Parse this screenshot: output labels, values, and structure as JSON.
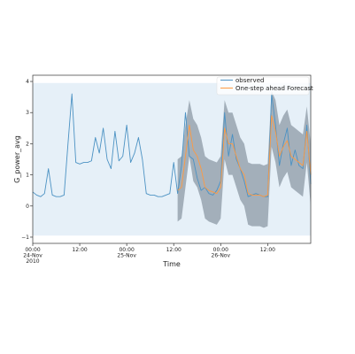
{
  "chart_data": {
    "type": "line",
    "title": "",
    "xlabel": "Time",
    "ylabel": "G_power_avg",
    "xlim": [
      "2010-11-24 00:00",
      "2010-11-26 23:00"
    ],
    "ylim": [
      -1.2,
      4.2
    ],
    "yticks": [
      -1,
      0,
      1,
      2,
      3,
      4
    ],
    "ytick_labels": [
      "−1",
      "0",
      "1",
      "2",
      "3",
      "4"
    ],
    "xticks": [
      {
        "x": "2010-11-24 00:00",
        "label": "00:00\n24-Nov\n2010"
      },
      {
        "x": "2010-11-24 12:00",
        "label": "12:00"
      },
      {
        "x": "2010-11-25 00:00",
        "label": "00:00\n25-Nov"
      },
      {
        "x": "2010-11-25 12:00",
        "label": "12:00"
      },
      {
        "x": "2010-11-26 00:00",
        "label": "00:00\n26-Nov"
      },
      {
        "x": "2010-11-26 12:00",
        "label": "12:00"
      }
    ],
    "grid": false,
    "legend_position": "top-right",
    "colors": {
      "observed": "#4c92c3",
      "forecast": "#ff9a40",
      "band": "#8c9aa6",
      "background": "#e6f0f8"
    },
    "series": [
      {
        "name": "observed",
        "x": [
          "2010-11-24 00:00",
          "2010-11-24 01:00",
          "2010-11-24 02:00",
          "2010-11-24 03:00",
          "2010-11-24 04:00",
          "2010-11-24 05:00",
          "2010-11-24 06:00",
          "2010-11-24 07:00",
          "2010-11-24 08:00",
          "2010-11-24 09:00",
          "2010-11-24 10:00",
          "2010-11-24 11:00",
          "2010-11-24 12:00",
          "2010-11-24 13:00",
          "2010-11-24 14:00",
          "2010-11-24 15:00",
          "2010-11-24 16:00",
          "2010-11-24 17:00",
          "2010-11-24 18:00",
          "2010-11-24 19:00",
          "2010-11-24 20:00",
          "2010-11-24 21:00",
          "2010-11-24 22:00",
          "2010-11-24 23:00",
          "2010-11-25 00:00",
          "2010-11-25 01:00",
          "2010-11-25 02:00",
          "2010-11-25 03:00",
          "2010-11-25 04:00",
          "2010-11-25 05:00",
          "2010-11-25 06:00",
          "2010-11-25 07:00",
          "2010-11-25 08:00",
          "2010-11-25 09:00",
          "2010-11-25 10:00",
          "2010-11-25 11:00",
          "2010-11-25 12:00",
          "2010-11-25 13:00",
          "2010-11-25 14:00",
          "2010-11-25 15:00",
          "2010-11-25 16:00",
          "2010-11-25 17:00",
          "2010-11-25 18:00",
          "2010-11-25 19:00",
          "2010-11-25 20:00",
          "2010-11-25 21:00",
          "2010-11-25 22:00",
          "2010-11-25 23:00",
          "2010-11-26 00:00",
          "2010-11-26 01:00",
          "2010-11-26 02:00",
          "2010-11-26 03:00",
          "2010-11-26 04:00",
          "2010-11-26 05:00",
          "2010-11-26 06:00",
          "2010-11-26 07:00",
          "2010-11-26 08:00",
          "2010-11-26 09:00",
          "2010-11-26 10:00",
          "2010-11-26 11:00",
          "2010-11-26 12:00",
          "2010-11-26 13:00",
          "2010-11-26 14:00",
          "2010-11-26 15:00",
          "2010-11-26 16:00",
          "2010-11-26 17:00",
          "2010-11-26 18:00",
          "2010-11-26 19:00",
          "2010-11-26 20:00",
          "2010-11-26 21:00",
          "2010-11-26 22:00",
          "2010-11-26 23:00"
        ],
        "values": [
          0.45,
          0.35,
          0.3,
          0.4,
          1.2,
          0.35,
          0.3,
          0.3,
          0.35,
          2.0,
          3.6,
          1.4,
          1.35,
          1.4,
          1.4,
          1.45,
          2.2,
          1.7,
          2.5,
          1.5,
          1.2,
          2.4,
          1.45,
          1.6,
          2.6,
          1.4,
          1.7,
          2.2,
          1.5,
          0.4,
          0.35,
          0.35,
          0.3,
          0.3,
          0.35,
          0.4,
          1.4,
          0.4,
          1.3,
          3.0,
          1.6,
          1.5,
          0.9,
          0.5,
          0.6,
          0.4,
          0.35,
          0.5,
          0.8,
          3.0,
          1.6,
          2.3,
          1.5,
          1.2,
          0.8,
          0.3,
          0.35,
          0.4,
          0.35,
          0.3,
          0.3,
          3.6,
          2.6,
          1.3,
          2.0,
          2.5,
          1.3,
          1.8,
          1.3,
          1.2,
          2.6,
          0.7
        ]
      },
      {
        "name": "One-step ahead Forecast",
        "x": [
          "2010-11-25 13:00",
          "2010-11-25 14:00",
          "2010-11-25 15:00",
          "2010-11-25 16:00",
          "2010-11-25 17:00",
          "2010-11-25 18:00",
          "2010-11-25 19:00",
          "2010-11-25 20:00",
          "2010-11-25 21:00",
          "2010-11-25 22:00",
          "2010-11-25 23:00",
          "2010-11-26 00:00",
          "2010-11-26 01:00",
          "2010-11-26 02:00",
          "2010-11-26 03:00",
          "2010-11-26 04:00",
          "2010-11-26 05:00",
          "2010-11-26 06:00",
          "2010-11-26 07:00",
          "2010-11-26 08:00",
          "2010-11-26 09:00",
          "2010-11-26 10:00",
          "2010-11-26 11:00",
          "2010-11-26 12:00",
          "2010-11-26 13:00",
          "2010-11-26 14:00",
          "2010-11-26 15:00",
          "2010-11-26 16:00",
          "2010-11-26 17:00",
          "2010-11-26 18:00",
          "2010-11-26 19:00",
          "2010-11-26 20:00",
          "2010-11-26 21:00",
          "2010-11-26 22:00",
          "2010-11-26 23:00"
        ],
        "values": [
          0.5,
          0.6,
          1.6,
          2.6,
          1.8,
          1.6,
          1.2,
          0.6,
          0.5,
          0.45,
          0.4,
          0.6,
          2.5,
          2.0,
          2.0,
          1.6,
          1.2,
          1.0,
          0.4,
          0.35,
          0.35,
          0.35,
          0.3,
          0.35,
          2.9,
          2.4,
          1.6,
          1.9,
          2.1,
          1.6,
          1.5,
          1.4,
          1.3,
          2.4,
          1.0
        ]
      }
    ],
    "confidence_band": {
      "x": [
        "2010-11-25 13:00",
        "2010-11-25 14:00",
        "2010-11-25 15:00",
        "2010-11-25 16:00",
        "2010-11-25 17:00",
        "2010-11-25 18:00",
        "2010-11-25 19:00",
        "2010-11-25 20:00",
        "2010-11-25 21:00",
        "2010-11-25 22:00",
        "2010-11-25 23:00",
        "2010-11-26 00:00",
        "2010-11-26 01:00",
        "2010-11-26 02:00",
        "2010-11-26 03:00",
        "2010-11-26 04:00",
        "2010-11-26 05:00",
        "2010-11-26 06:00",
        "2010-11-26 07:00",
        "2010-11-26 08:00",
        "2010-11-26 09:00",
        "2010-11-26 10:00",
        "2010-11-26 11:00",
        "2010-11-26 12:00",
        "2010-11-26 13:00",
        "2010-11-26 14:00",
        "2010-11-26 15:00",
        "2010-11-26 16:00",
        "2010-11-26 17:00",
        "2010-11-26 18:00",
        "2010-11-26 19:00",
        "2010-11-26 20:00",
        "2010-11-26 21:00",
        "2010-11-26 22:00",
        "2010-11-26 23:00"
      ],
      "upper": [
        1.5,
        1.6,
        2.6,
        3.4,
        2.8,
        2.6,
        2.2,
        1.6,
        1.5,
        1.45,
        1.4,
        1.6,
        3.4,
        3.0,
        3.0,
        2.6,
        2.2,
        2.0,
        1.4,
        1.35,
        1.35,
        1.35,
        1.3,
        1.35,
        3.7,
        3.4,
        2.6,
        2.9,
        3.1,
        2.6,
        2.5,
        2.4,
        2.3,
        3.2,
        2.0
      ],
      "lower": [
        -0.5,
        -0.4,
        0.6,
        1.6,
        0.8,
        0.6,
        0.2,
        -0.4,
        -0.5,
        -0.55,
        -0.6,
        -0.4,
        1.5,
        1.0,
        1.0,
        0.6,
        0.2,
        0.0,
        -0.6,
        -0.65,
        -0.65,
        -0.65,
        -0.7,
        -0.65,
        1.9,
        1.4,
        0.6,
        0.9,
        1.1,
        0.6,
        0.5,
        0.4,
        0.3,
        1.4,
        0.0
      ]
    }
  }
}
